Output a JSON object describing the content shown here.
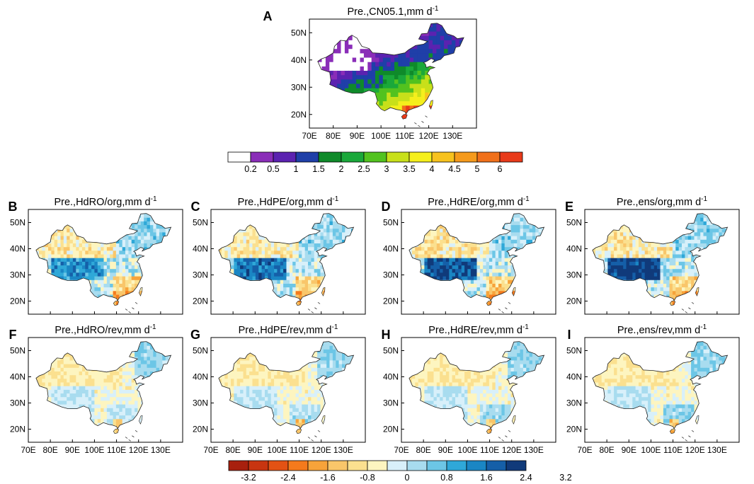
{
  "chart_data": [
    {
      "type": "heatmap",
      "panel": "A",
      "title": "Pre.,CN05.1,mm d",
      "title_sup": "-1",
      "xticks": [
        "70E",
        "80E",
        "90E",
        "100E",
        "110E",
        "120E",
        "130E"
      ],
      "yticks": [
        "20N",
        "30N",
        "40N",
        "50N"
      ],
      "xlim": [
        70,
        140
      ],
      "ylim": [
        15,
        55
      ],
      "colorbar": {
        "labels": [
          "0.2",
          "0.5",
          "1",
          "1.5",
          "2",
          "2.5",
          "3",
          "3.5",
          "4",
          "4.5",
          "5",
          "6"
        ],
        "colors": [
          "#ffffff",
          "#8a2db8",
          "#5b22b0",
          "#1f3fa8",
          "#0f8a2a",
          "#1aa83a",
          "#52c21f",
          "#c8e01a",
          "#f5ef1c",
          "#f7c21e",
          "#f59a1c",
          "#f0701a",
          "#e83a1a"
        ]
      }
    },
    {
      "type": "heatmap",
      "panel": "B",
      "title": "Pre.,HdRO/org,mm d",
      "title_sup": "-1"
    },
    {
      "type": "heatmap",
      "panel": "C",
      "title": "Pre.,HdPE/org,mm d",
      "title_sup": "-1"
    },
    {
      "type": "heatmap",
      "panel": "D",
      "title": "Pre.,HdRE/org,mm d",
      "title_sup": "-1"
    },
    {
      "type": "heatmap",
      "panel": "E",
      "title": "Pre.,ens/org,mm d",
      "title_sup": "-1"
    },
    {
      "type": "heatmap",
      "panel": "F",
      "title": "Pre.,HdRO/rev,mm d",
      "title_sup": "-1"
    },
    {
      "type": "heatmap",
      "panel": "G",
      "title": "Pre.,HdPE/rev,mm d",
      "title_sup": "-1"
    },
    {
      "type": "heatmap",
      "panel": "H",
      "title": "Pre.,HdRE/rev,mm d",
      "title_sup": "-1"
    },
    {
      "type": "heatmap",
      "panel": "I",
      "title": "Pre.,ens/rev,mm d",
      "title_sup": "-1"
    },
    {
      "type": "colorbar",
      "panel": "bias",
      "labels": [
        "-3.2",
        "-2.4",
        "-1.6",
        "-0.8",
        "0",
        "0.8",
        "1.6",
        "2.4",
        "3.2"
      ],
      "colors": [
        "#a8200e",
        "#c83510",
        "#e35214",
        "#f57a1c",
        "#f7a33a",
        "#f9c66a",
        "#fbe08f",
        "#fdf5c0",
        "#d8f0fa",
        "#a8dcef",
        "#6cc6e6",
        "#2fa8d8",
        "#1a86c4",
        "#155fa8",
        "#103a7a"
      ]
    }
  ]
}
